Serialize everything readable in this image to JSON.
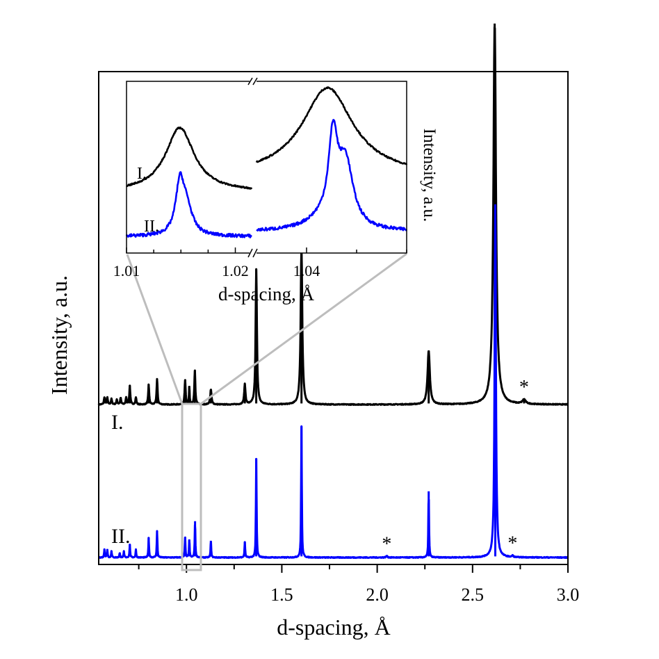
{
  "chart_data": [
    {
      "type": "line",
      "name": "main",
      "xlabel": "d-spacing, Å",
      "ylabel": "Intensity, a.u.",
      "xlim": [
        0.54,
        3.0
      ],
      "ylim": [
        0,
        1.0
      ],
      "xticks": [
        1.0,
        1.5,
        2.0,
        2.5,
        3.0
      ],
      "xtick_labels": [
        "1.0",
        "1.5",
        "2.0",
        "2.5",
        "3.0"
      ],
      "minor_xticks": [
        0.75,
        1.25,
        1.75,
        2.25,
        2.75
      ],
      "grid": false,
      "series": [
        {
          "name": "I.",
          "label": "I.",
          "color": "#000000",
          "offset": 0.275,
          "peaks": [
            {
              "x": 0.57,
              "h": 0.013,
              "w": 0.003
            },
            {
              "x": 0.585,
              "h": 0.013,
              "w": 0.003
            },
            {
              "x": 0.607,
              "h": 0.01,
              "w": 0.003
            },
            {
              "x": 0.635,
              "h": 0.009,
              "w": 0.003
            },
            {
              "x": 0.655,
              "h": 0.012,
              "w": 0.003
            },
            {
              "x": 0.684,
              "h": 0.013,
              "w": 0.003
            },
            {
              "x": 0.703,
              "h": 0.034,
              "w": 0.003
            },
            {
              "x": 0.735,
              "h": 0.013,
              "w": 0.003
            },
            {
              "x": 0.802,
              "h": 0.036,
              "w": 0.003
            },
            {
              "x": 0.846,
              "h": 0.046,
              "w": 0.003
            },
            {
              "x": 0.993,
              "h": 0.044,
              "w": 0.003
            },
            {
              "x": 1.015,
              "h": 0.032,
              "w": 0.002
            },
            {
              "x": 1.044,
              "h": 0.061,
              "w": 0.003
            },
            {
              "x": 1.128,
              "h": 0.027,
              "w": 0.004
            },
            {
              "x": 1.306,
              "h": 0.036,
              "w": 0.004
            },
            {
              "x": 1.366,
              "h": 0.243,
              "w": 0.004
            },
            {
              "x": 1.603,
              "h": 0.282,
              "w": 0.005
            },
            {
              "x": 2.27,
              "h": 0.097,
              "w": 0.007
            },
            {
              "x": 2.616,
              "h": 0.685,
              "w": 0.008
            },
            {
              "x": 2.77,
              "h": 0.008,
              "w": 0.01
            }
          ]
        },
        {
          "name": "II.",
          "label": "II.",
          "color": "#0000ff",
          "offset": 0.0,
          "peaks": [
            {
              "x": 0.57,
              "h": 0.015,
              "w": 0.002
            },
            {
              "x": 0.585,
              "h": 0.015,
              "w": 0.002
            },
            {
              "x": 0.607,
              "h": 0.012,
              "w": 0.002
            },
            {
              "x": 0.65,
              "h": 0.008,
              "w": 0.002
            },
            {
              "x": 0.672,
              "h": 0.011,
              "w": 0.002
            },
            {
              "x": 0.703,
              "h": 0.024,
              "w": 0.002
            },
            {
              "x": 0.735,
              "h": 0.014,
              "w": 0.002
            },
            {
              "x": 0.802,
              "h": 0.036,
              "w": 0.002
            },
            {
              "x": 0.846,
              "h": 0.048,
              "w": 0.002
            },
            {
              "x": 0.993,
              "h": 0.036,
              "w": 0.002
            },
            {
              "x": 1.015,
              "h": 0.032,
              "w": 0.002
            },
            {
              "x": 1.045,
              "h": 0.065,
              "w": 0.002
            },
            {
              "x": 1.128,
              "h": 0.03,
              "w": 0.002
            },
            {
              "x": 1.306,
              "h": 0.028,
              "w": 0.002
            },
            {
              "x": 1.366,
              "h": 0.178,
              "w": 0.002
            },
            {
              "x": 1.603,
              "h": 0.236,
              "w": 0.002
            },
            {
              "x": 2.05,
              "h": 0.003,
              "w": 0.004
            },
            {
              "x": 2.27,
              "h": 0.119,
              "w": 0.002
            },
            {
              "x": 2.619,
              "h": 0.635,
              "w": 0.004
            },
            {
              "x": 2.71,
              "h": 0.003,
              "w": 0.004
            }
          ]
        }
      ],
      "annotations": [
        {
          "text": "*",
          "x": 2.77,
          "series": "I."
        },
        {
          "text": "*",
          "x": 2.05,
          "series": "II."
        },
        {
          "text": "*",
          "x": 2.71,
          "series": "II."
        }
      ],
      "zoom_region": {
        "x": [
          1.0,
          1.08
        ]
      }
    },
    {
      "type": "line",
      "name": "inset",
      "xlabel": "d-spacing, Å",
      "ylabel": "Intensity, a.u.",
      "x_segments": [
        [
          1.01,
          1.0215
        ],
        [
          1.03,
          1.06
        ]
      ],
      "axis_break": true,
      "xticks": [
        1.01,
        1.02,
        1.04
      ],
      "xtick_labels": [
        "1.01",
        "1.02",
        "1.04"
      ],
      "minor_xticks": [
        1.0125,
        1.015,
        1.0175,
        1.05,
        1.06
      ],
      "ylim": [
        0,
        1.0
      ],
      "series": [
        {
          "name": "I.",
          "label": "I.",
          "color": "#000000",
          "segments": [
            {
              "baseline": 0.34,
              "peaks": [
                {
                  "x": 1.0149,
                  "h": 0.4,
                  "w": 0.0016
                }
              ]
            },
            {
              "baseline": 0.44,
              "peaks": [
                {
                  "x": 1.0442,
                  "h": 0.55,
                  "w": 0.0062
                }
              ]
            }
          ]
        },
        {
          "name": "II.",
          "label": "II.",
          "color": "#0000ff",
          "segments": [
            {
              "baseline": 0.06,
              "peaks": [
                {
                  "x": 1.0149,
                  "h": 0.3,
                  "w": 0.00045
                },
                {
                  "x": 1.0155,
                  "h": 0.17,
                  "w": 0.00065
                }
              ]
            },
            {
              "baseline": 0.09,
              "peaks": [
                {
                  "x": 1.0453,
                  "h": 0.52,
                  "w": 0.0011
                },
                {
                  "x": 1.0478,
                  "h": 0.4,
                  "w": 0.0018
                },
                {
                  "x": 1.043,
                  "h": 0.06,
                  "w": 0.004
                }
              ]
            }
          ]
        }
      ]
    }
  ]
}
